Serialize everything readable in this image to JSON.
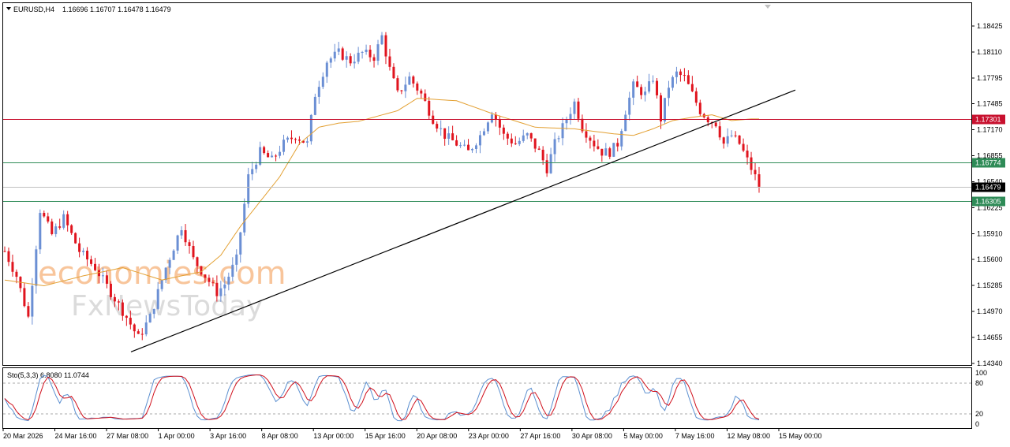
{
  "header": {
    "symbol": "EURUSD,H4",
    "ohlc": "1.16696 1.16707 1.16478 1.16479"
  },
  "watermark": {
    "line1": "economies.com",
    "line2": "FxNewsToday"
  },
  "chart_data": {
    "type": "candlestick",
    "price_axis": {
      "ticks": [
        "1.18425",
        "1.18110",
        "1.17795",
        "1.17485",
        "1.17170",
        "1.16855",
        "1.16540",
        "1.16225",
        "1.15910",
        "1.15600",
        "1.15285",
        "1.14970",
        "1.14655",
        "1.14340"
      ],
      "range": [
        1.1434,
        1.18615
      ]
    },
    "time_axis": {
      "ticks": [
        "20 Mar 2026",
        "24 Mar 16:00",
        "27 Mar 08:00",
        "1 Apr 00:00",
        "3 Apr 16:00",
        "8 Apr 08:00",
        "13 Apr 00:00",
        "15 Apr 16:00",
        "20 Apr 08:00",
        "23 Apr 00:00",
        "27 Apr 16:00",
        "30 Apr 08:00",
        "5 May 00:00",
        "7 May 16:00",
        "12 May 08:00",
        "15 May 00:00"
      ]
    },
    "horizontal_levels": [
      {
        "value": 1.17301,
        "label": "1.17301",
        "color": "#c8102e"
      },
      {
        "value": 1.16774,
        "label": "1.16774",
        "color": "#2e8b57"
      },
      {
        "value": 1.16479,
        "label": "1.16479",
        "color": "#000000"
      },
      {
        "value": 1.16305,
        "label": "1.16305",
        "color": "#2e8b57"
      }
    ],
    "trendline": {
      "from": [
        1.1448,
        0.169
      ],
      "to": [
        1.1765,
        0.961
      ]
    },
    "price_path": [
      [
        0,
        1.157
      ],
      [
        3,
        1.154
      ],
      [
        6,
        1.149
      ],
      [
        9,
        1.162
      ],
      [
        12,
        1.159
      ],
      [
        15,
        1.161
      ],
      [
        19,
        1.157
      ],
      [
        23,
        1.155
      ],
      [
        27,
        1.152
      ],
      [
        31,
        1.149
      ],
      [
        34,
        1.1465
      ],
      [
        37,
        1.149
      ],
      [
        41,
        1.155
      ],
      [
        45,
        1.16
      ],
      [
        48,
        1.156
      ],
      [
        51,
        1.154
      ],
      [
        54,
        1.152
      ],
      [
        56,
        1.153
      ],
      [
        59,
        1.156
      ],
      [
        62,
        1.166
      ],
      [
        65,
        1.169
      ],
      [
        68,
        1.168
      ],
      [
        71,
        1.17
      ],
      [
        74,
        1.171
      ],
      [
        77,
        1.17
      ],
      [
        79,
        1.176
      ],
      [
        82,
        1.18
      ],
      [
        85,
        1.181
      ],
      [
        88,
        1.18
      ],
      [
        91,
        1.181
      ],
      [
        94,
        1.1805
      ],
      [
        96,
        1.183
      ],
      [
        98,
        1.179
      ],
      [
        100,
        1.176
      ],
      [
        103,
        1.178
      ],
      [
        106,
        1.176
      ],
      [
        109,
        1.173
      ],
      [
        112,
        1.171
      ],
      [
        115,
        1.17
      ],
      [
        118,
        1.169
      ],
      [
        121,
        1.171
      ],
      [
        124,
        1.174
      ],
      [
        127,
        1.171
      ],
      [
        130,
        1.17
      ],
      [
        133,
        1.171
      ],
      [
        136,
        1.169
      ],
      [
        138,
        1.167
      ],
      [
        140,
        1.17
      ],
      [
        143,
        1.173
      ],
      [
        145,
        1.175
      ],
      [
        147,
        1.172
      ],
      [
        150,
        1.17
      ],
      [
        152,
        1.169
      ],
      [
        154,
        1.169
      ],
      [
        156,
        1.17
      ],
      [
        158,
        1.174
      ],
      [
        160,
        1.177
      ],
      [
        163,
        1.176
      ],
      [
        165,
        1.178
      ],
      [
        167,
        1.173
      ],
      [
        169,
        1.177
      ],
      [
        171,
        1.1785
      ],
      [
        173,
        1.178
      ],
      [
        175,
        1.176
      ],
      [
        177,
        1.174
      ],
      [
        179,
        1.173
      ],
      [
        181,
        1.1725
      ],
      [
        183,
        1.17
      ],
      [
        185,
        1.171
      ],
      [
        187,
        1.17
      ],
      [
        189,
        1.168
      ],
      [
        191,
        1.166
      ],
      [
        192,
        1.1648
      ]
    ],
    "moving_average": [
      [
        0,
        1.1535
      ],
      [
        10,
        1.1528
      ],
      [
        20,
        1.154
      ],
      [
        30,
        1.155
      ],
      [
        40,
        1.1535
      ],
      [
        50,
        1.1545
      ],
      [
        55,
        1.1565
      ],
      [
        60,
        1.16
      ],
      [
        65,
        1.163
      ],
      [
        70,
        1.166
      ],
      [
        75,
        1.17
      ],
      [
        80,
        1.172
      ],
      [
        85,
        1.1725
      ],
      [
        90,
        1.1727
      ],
      [
        100,
        1.174
      ],
      [
        105,
        1.1755
      ],
      [
        115,
        1.1752
      ],
      [
        125,
        1.1735
      ],
      [
        135,
        1.172
      ],
      [
        145,
        1.1718
      ],
      [
        150,
        1.1715
      ],
      [
        155,
        1.1712
      ],
      [
        160,
        1.171
      ],
      [
        165,
        1.1718
      ],
      [
        170,
        1.1728
      ],
      [
        175,
        1.1732
      ],
      [
        180,
        1.1735
      ],
      [
        185,
        1.1728
      ],
      [
        190,
        1.173
      ]
    ],
    "stochastic": {
      "label": "Sto(5,3,3) 6.8080 11.0744",
      "levels": [
        "100",
        "80",
        "20",
        "0"
      ]
    }
  }
}
